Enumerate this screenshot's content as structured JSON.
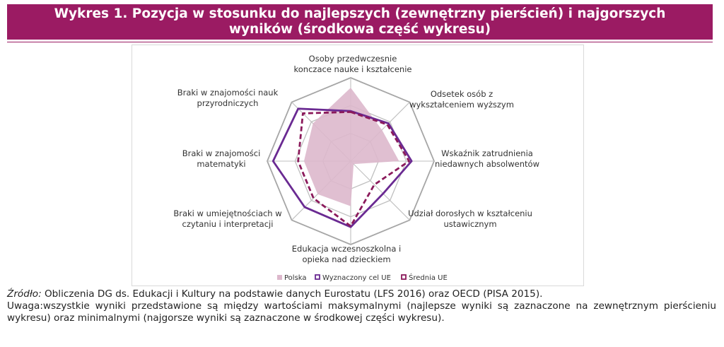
{
  "title": {
    "line1": "Wykres 1. Pozycja w stosunku do najlepszych (zewnętrzny pierścień) i najgorszych",
    "line2": "wyników (środkowa część wykresu)"
  },
  "chart_data": {
    "type": "radar",
    "axes": [
      [
        "Osoby przedwczesnie",
        "konczace nauke i kształcenie"
      ],
      [
        "Odsetek osób z",
        "wykształceniem wyższym"
      ],
      [
        "Wskaźnik zatrudnienia",
        "niedawnych absolwentów"
      ],
      [
        "Udział dorosłych w kształceniu",
        "ustawicznym"
      ],
      [
        "Edukacja wczesnoszkolna i",
        "opieka nad dzieckiem"
      ],
      [
        "Braki w umiejętnościach w",
        "czytaniu i interpretacji"
      ],
      [
        "Braki w znajomości",
        "matematyki"
      ],
      [
        "Braki w znajomości nauk",
        "przyrodniczych"
      ]
    ],
    "range": [
      0,
      1
    ],
    "rings": 3,
    "series": [
      {
        "name": "Polska",
        "values": [
          0.88,
          0.53,
          0.58,
          0.05,
          0.54,
          0.56,
          0.56,
          0.64
        ],
        "color": "#ddb8cc",
        "style": "fill"
      },
      {
        "name": "Wyznaczony cel UE",
        "values": [
          0.6,
          0.64,
          0.73,
          0.55,
          0.79,
          0.78,
          0.93,
          0.89
        ],
        "color": "#6a2a92",
        "style": "solid"
      },
      {
        "name": "Średnia UE",
        "values": [
          0.59,
          0.62,
          0.7,
          0.4,
          0.78,
          0.63,
          0.63,
          0.81
        ],
        "color": "#8b1a5b",
        "style": "dashed"
      }
    ]
  },
  "footer": {
    "source_label": "Źródło:",
    "source_text": " Obliczenia DG ds. Edukacji i Kultury na podstawie danych Eurostatu (LFS 2016) oraz OECD (PISA 2015).",
    "note_text": "Uwaga:wszystkie wyniki przedstawione są między wartościami maksymalnymi (najlepsze wyniki są zaznaczone na zewnętrznym pierścieniu wykresu) oraz minimalnymi (najgorsze wyniki są zaznaczone w środkowej części wykresu)."
  }
}
